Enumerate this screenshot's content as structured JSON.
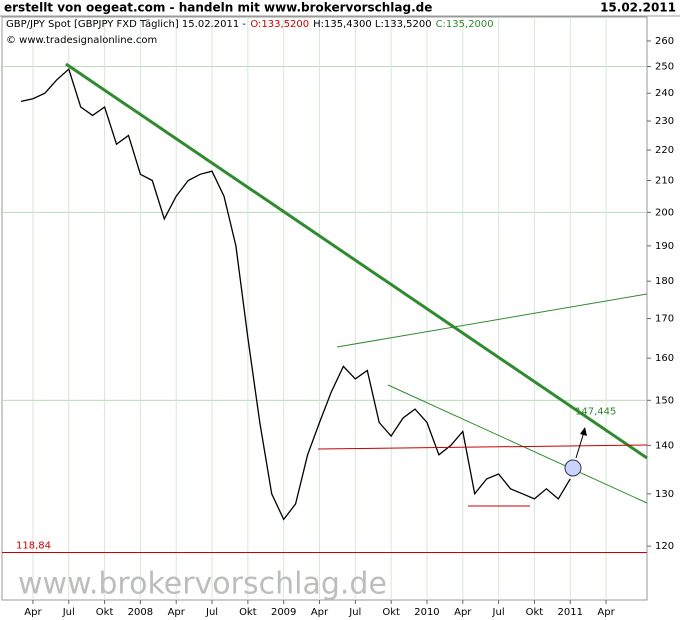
{
  "header": {
    "left": "erstellt von oegeat.com - handeln mit www.brokervorschlag.de",
    "right": "15.02.2011"
  },
  "chart_data": {
    "type": "line",
    "log_scale": true,
    "legend": {
      "instrument": "GBP/JPY Spot [GBPJPY FXD  Täglich] 15.02.2011 -",
      "open": "O:133,5200",
      "high_low": "H:135,4300 L:133,5200",
      "close": "C:135,2000",
      "source": "© www.tradesignalonline.com"
    },
    "watermark": "www.brokervorschlag.de",
    "categories": [
      null,
      "Apr",
      null,
      null,
      "Jul",
      null,
      null,
      "Okt",
      null,
      null,
      "2008",
      null,
      null,
      "Apr",
      null,
      null,
      "Jul",
      null,
      null,
      "Okt",
      null,
      null,
      "2009",
      null,
      null,
      "Apr",
      null,
      null,
      "Jul",
      null,
      null,
      "Okt",
      null,
      null,
      "2010",
      null,
      null,
      "Apr",
      null,
      null,
      "Jul",
      null,
      null,
      "Okt",
      null,
      null,
      "2011",
      null,
      null,
      "Apr",
      null,
      null,
      null
    ],
    "series": [
      {
        "name": "GBP/JPY",
        "color": "#000000",
        "values": [
          237,
          238,
          240,
          245,
          249,
          235,
          232,
          235,
          222,
          225,
          212,
          210,
          198,
          205,
          210,
          212,
          213,
          205,
          190,
          165,
          145,
          130,
          125,
          128,
          138,
          145,
          152,
          158,
          155,
          157,
          145,
          142,
          146,
          148,
          145,
          138,
          140,
          143,
          130,
          133,
          134,
          131,
          130,
          129,
          131,
          129,
          133,
          null,
          null,
          null,
          null,
          null,
          null
        ]
      }
    ],
    "ylim": [
      110.5,
      269.7
    ],
    "yticks": [
      120,
      130,
      140,
      150,
      160,
      170,
      180,
      190,
      200,
      210,
      220,
      230,
      240,
      250,
      260
    ],
    "ygrid": [
      150,
      200,
      250
    ],
    "annotations": [
      {
        "value": 118.84,
        "label": "118,84",
        "color": "#cc0000"
      },
      {
        "value": 147.445,
        "label": "147,445",
        "color": "#2e8b2e"
      }
    ]
  }
}
